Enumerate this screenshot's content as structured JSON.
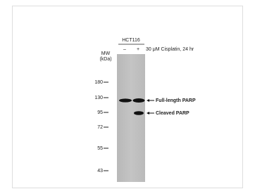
{
  "header": {
    "cell_line": "HCT116",
    "lanes": [
      "–",
      "+"
    ],
    "treatment": "30 μM Cisplatin, 24 hr"
  },
  "marker_axis": {
    "title": [
      "MW",
      "(kDa)"
    ],
    "markers": [
      "180",
      "130",
      "95",
      "72",
      "55",
      "43"
    ]
  },
  "bands": [
    "Full-length PARP",
    "Cleaved PARP"
  ]
}
